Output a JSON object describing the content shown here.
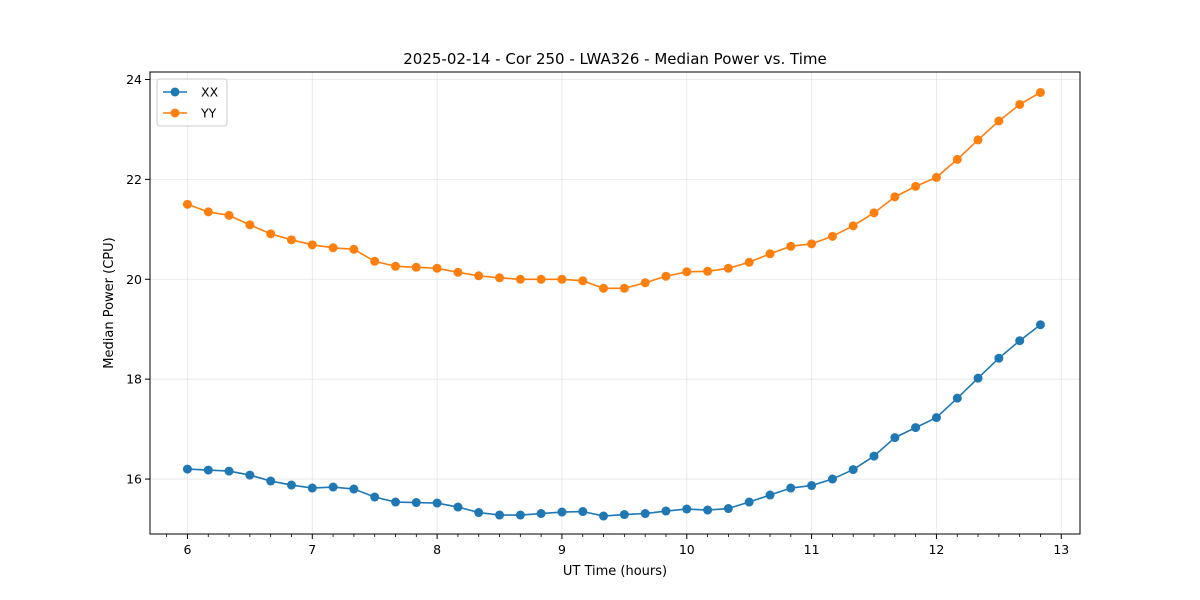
{
  "chart_data": {
    "type": "line",
    "title": "2025-02-14 - Cor 250 - LWA326 - Median Power vs. Time",
    "xlabel": "UT Time (hours)",
    "ylabel": "Median Power (CPU)",
    "xlim": [
      5.7,
      13.15
    ],
    "ylim": [
      14.9,
      24.15
    ],
    "xticks": [
      6,
      7,
      8,
      9,
      10,
      11,
      12,
      13
    ],
    "yticks": [
      16,
      18,
      20,
      22,
      24
    ],
    "grid": true,
    "legend_position": "top-left",
    "x": [
      6.0,
      6.167,
      6.333,
      6.5,
      6.667,
      6.833,
      7.0,
      7.167,
      7.333,
      7.5,
      7.667,
      7.833,
      8.0,
      8.167,
      8.333,
      8.5,
      8.667,
      8.833,
      9.0,
      9.167,
      9.333,
      9.5,
      9.667,
      9.833,
      10.0,
      10.167,
      10.333,
      10.5,
      10.667,
      10.833,
      11.0,
      11.167,
      11.333,
      11.5,
      11.667,
      11.833,
      12.0,
      12.167,
      12.333,
      12.5,
      12.667,
      12.833
    ],
    "series": [
      {
        "name": "XX",
        "color": "#1f77b4",
        "values": [
          16.2,
          16.18,
          16.16,
          16.08,
          15.96,
          15.88,
          15.82,
          15.84,
          15.8,
          15.64,
          15.54,
          15.53,
          15.52,
          15.44,
          15.33,
          15.28,
          15.28,
          15.31,
          15.34,
          15.35,
          15.26,
          15.29,
          15.31,
          15.36,
          15.4,
          15.38,
          15.41,
          15.54,
          15.68,
          15.82,
          15.87,
          16.0,
          16.19,
          16.46,
          16.83,
          17.03,
          17.23,
          17.62,
          18.02,
          18.42,
          18.77,
          19.09
        ]
      },
      {
        "name": "YY",
        "color": "#ff7f0e",
        "values": [
          21.5,
          21.35,
          21.28,
          21.09,
          20.91,
          20.79,
          20.69,
          20.63,
          20.6,
          20.36,
          20.26,
          20.24,
          20.22,
          20.14,
          20.07,
          20.03,
          20.0,
          20.0,
          20.0,
          19.97,
          19.82,
          19.82,
          19.93,
          20.06,
          20.15,
          20.16,
          20.22,
          20.34,
          20.51,
          20.66,
          20.71,
          20.86,
          21.07,
          21.33,
          21.65,
          21.86,
          22.04,
          22.4,
          22.79,
          23.17,
          23.5,
          23.74
        ]
      }
    ]
  }
}
